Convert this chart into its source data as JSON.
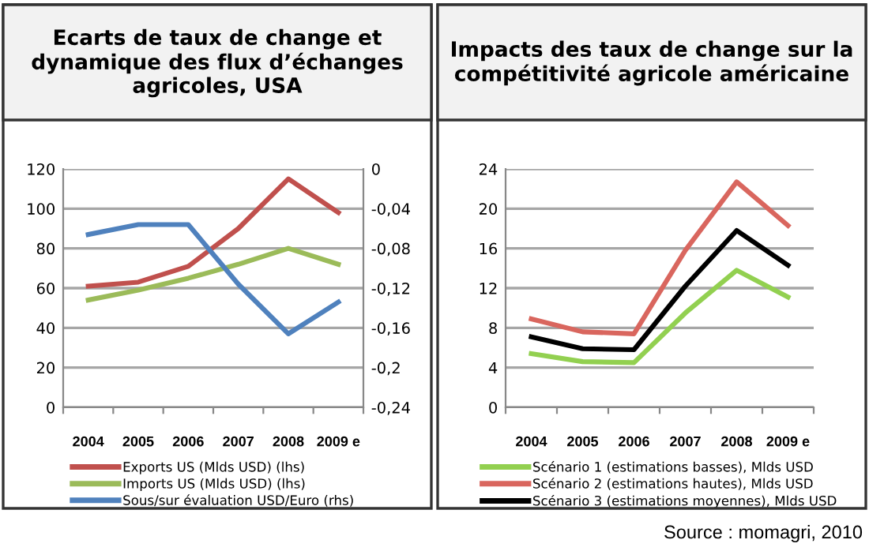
{
  "chart_data": [
    {
      "type": "line",
      "title": "Ecarts de taux de change et dynamique des flux d’échanges agricoles, USA",
      "categories": [
        "2004",
        "2005",
        "2006",
        "2007",
        "2008",
        "2009 e"
      ],
      "series": [
        {
          "name": "Exports US (Mlds USD) (lhs)",
          "color": "#c0504d",
          "values": [
            61,
            63,
            71,
            90,
            115,
            98
          ]
        },
        {
          "name": "Imports US (Mlds USD) (lhs)",
          "color": "#9bbb59",
          "values": [
            54,
            59,
            65,
            72,
            80,
            72
          ]
        },
        {
          "name": "Sous/sur évaluation USD/Euro (rhs)",
          "color": "#4f81bd",
          "axis": "y2",
          "values": [
            -0.066,
            -0.056,
            -0.056,
            -0.116,
            -0.166,
            -0.134
          ]
        }
      ],
      "ylim": [
        0,
        120
      ],
      "yticks": [
        0,
        20,
        40,
        60,
        80,
        100,
        120
      ],
      "y2lim": [
        -0.24,
        0
      ],
      "y2ticks": [
        {
          "value": -0.24,
          "label": "-0,24"
        },
        {
          "value": -0.2,
          "label": "-0,2"
        },
        {
          "value": -0.16,
          "label": "-0,16"
        },
        {
          "value": -0.12,
          "label": "-0,12"
        },
        {
          "value": -0.08,
          "label": "-0,08"
        },
        {
          "value": -0.04,
          "label": "-0,04"
        },
        {
          "value": 0,
          "label": "0"
        }
      ],
      "grid": "y",
      "legend": "bottom"
    },
    {
      "type": "line",
      "title": "Impacts des taux de change sur la compétitivité agricole américaine",
      "categories": [
        "2004",
        "2005",
        "2006",
        "2007",
        "2008",
        "2009 e"
      ],
      "series": [
        {
          "name": "Scénario 1 (estimations basses), Mlds USD",
          "color": "#92d050",
          "values": [
            5.4,
            4.6,
            4.5,
            9.5,
            13.8,
            11.1
          ]
        },
        {
          "name": "Scénario 2 (estimations hautes), Mlds USD",
          "color": "#d9665e",
          "values": [
            8.9,
            7.6,
            7.4,
            15.8,
            22.7,
            18.3
          ]
        },
        {
          "name": "Scénario 3 (estimations moyennes), Mlds USD",
          "color": "#000000",
          "values": [
            7.1,
            5.9,
            5.8,
            12.2,
            17.8,
            14.3
          ]
        }
      ],
      "ylim": [
        0,
        24
      ],
      "yticks": [
        0,
        4,
        8,
        12,
        16,
        20,
        24
      ],
      "grid": "y",
      "legend": "bottom",
      "annotations": [
        "Source : momagri, 2010"
      ]
    }
  ]
}
